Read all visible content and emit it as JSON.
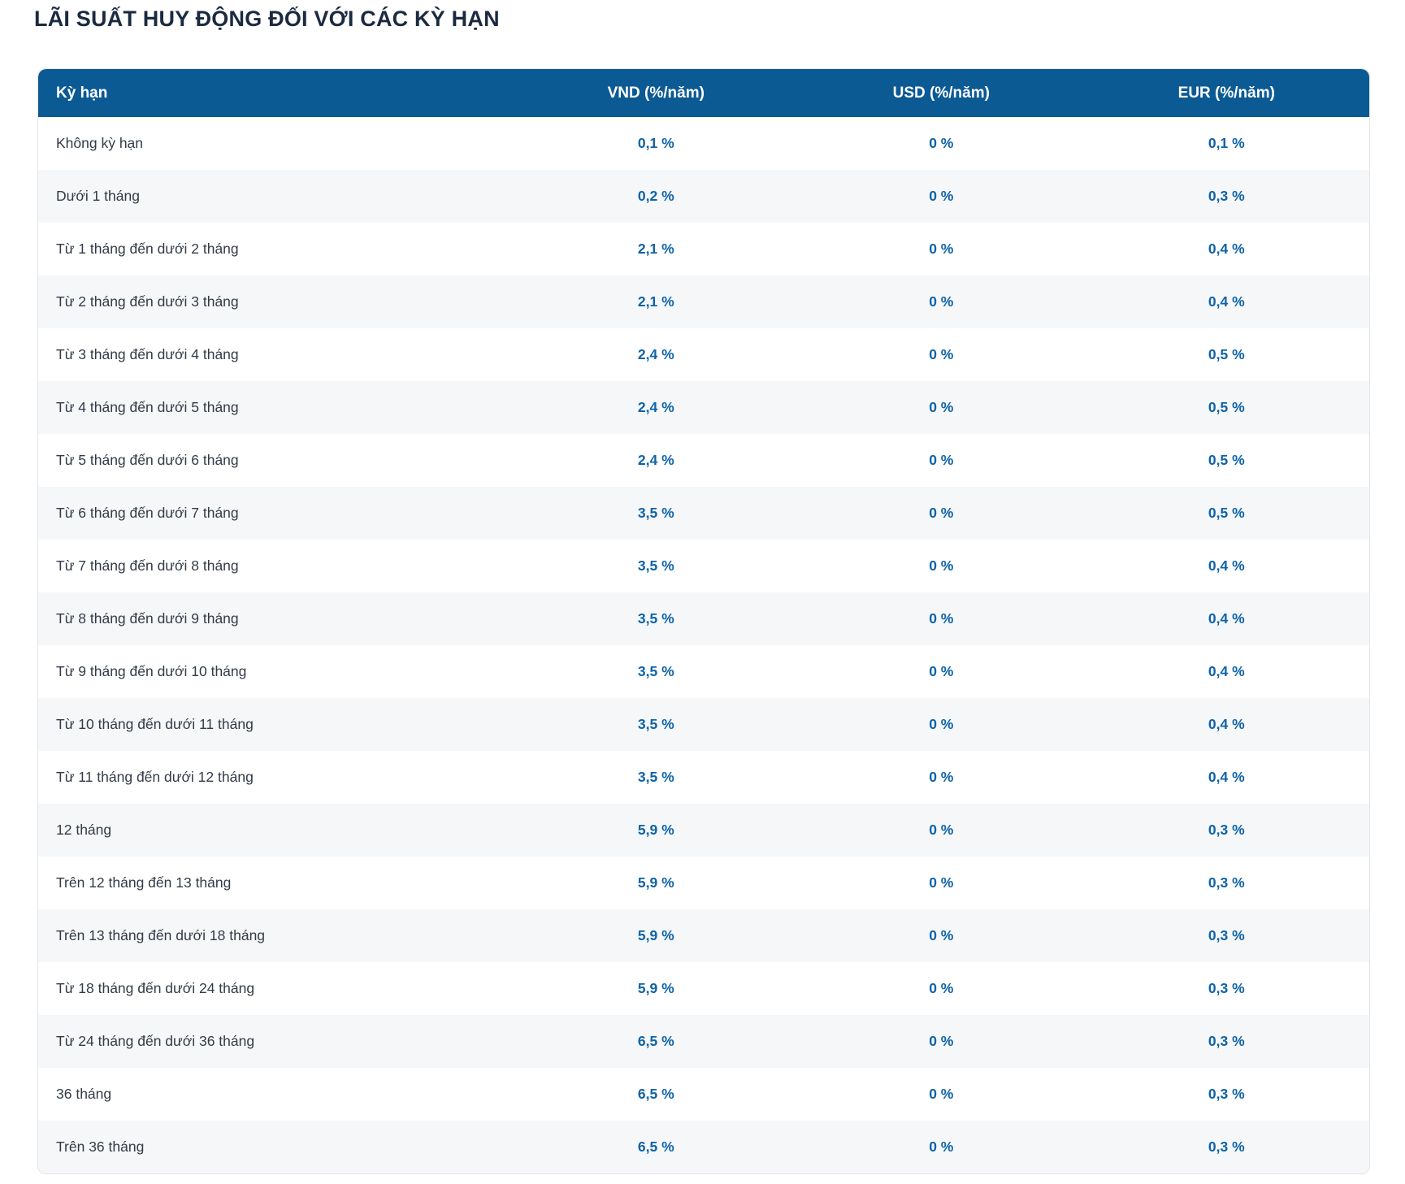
{
  "title": "LÃI SUẤT HUY ĐỘNG ĐỐI VỚI CÁC KỲ HẠN",
  "colors": {
    "header_background": "#0b5a94",
    "header_text": "#ffffff",
    "title_text": "#1b2a40",
    "term_text": "#333b47",
    "value_text": "#0e63a8",
    "row_alternate": "#f5f7f9",
    "row_default": "#ffffff",
    "table_border": "#e2e5ea"
  },
  "table": {
    "columns": [
      "Kỳ hạn",
      "VND (%/năm)",
      "USD (%/năm)",
      "EUR (%/năm)"
    ],
    "rows": [
      {
        "term": "Không kỳ hạn",
        "vnd": "0,1 %",
        "usd": "0 %",
        "eur": "0,1 %"
      },
      {
        "term": "Dưới 1 tháng",
        "vnd": "0,2 %",
        "usd": "0 %",
        "eur": "0,3 %"
      },
      {
        "term": "Từ 1 tháng đến dưới 2 tháng",
        "vnd": "2,1 %",
        "usd": "0 %",
        "eur": "0,4 %"
      },
      {
        "term": "Từ 2 tháng đến dưới 3 tháng",
        "vnd": "2,1 %",
        "usd": "0 %",
        "eur": "0,4 %"
      },
      {
        "term": "Từ 3 tháng đến dưới 4 tháng",
        "vnd": "2,4 %",
        "usd": "0 %",
        "eur": "0,5 %"
      },
      {
        "term": "Từ 4 tháng đến dưới 5 tháng",
        "vnd": "2,4 %",
        "usd": "0 %",
        "eur": "0,5 %"
      },
      {
        "term": "Từ 5 tháng đến dưới 6 tháng",
        "vnd": "2,4 %",
        "usd": "0 %",
        "eur": "0,5 %"
      },
      {
        "term": "Từ 6 tháng đến dưới 7 tháng",
        "vnd": "3,5 %",
        "usd": "0 %",
        "eur": "0,5 %"
      },
      {
        "term": "Từ 7 tháng đến dưới 8 tháng",
        "vnd": "3,5 %",
        "usd": "0 %",
        "eur": "0,4 %"
      },
      {
        "term": "Từ 8 tháng đến dưới 9 tháng",
        "vnd": "3,5 %",
        "usd": "0 %",
        "eur": "0,4 %"
      },
      {
        "term": "Từ 9 tháng đến dưới 10 tháng",
        "vnd": "3,5 %",
        "usd": "0 %",
        "eur": "0,4 %"
      },
      {
        "term": "Từ 10 tháng đến dưới 11 tháng",
        "vnd": "3,5 %",
        "usd": "0 %",
        "eur": "0,4 %"
      },
      {
        "term": "Từ 11 tháng đến dưới 12 tháng",
        "vnd": "3,5 %",
        "usd": "0 %",
        "eur": "0,4 %"
      },
      {
        "term": "12 tháng",
        "vnd": "5,9 %",
        "usd": "0 %",
        "eur": "0,3 %"
      },
      {
        "term": "Trên 12 tháng đến 13 tháng",
        "vnd": "5,9 %",
        "usd": "0 %",
        "eur": "0,3 %"
      },
      {
        "term": "Trên 13 tháng đến dưới 18 tháng",
        "vnd": "5,9 %",
        "usd": "0 %",
        "eur": "0,3 %"
      },
      {
        "term": "Từ 18 tháng đến dưới 24 tháng",
        "vnd": "5,9 %",
        "usd": "0 %",
        "eur": "0,3 %"
      },
      {
        "term": "Từ 24 tháng đến dưới 36 tháng",
        "vnd": "6,5 %",
        "usd": "0 %",
        "eur": "0,3 %"
      },
      {
        "term": "36 tháng",
        "vnd": "6,5 %",
        "usd": "0 %",
        "eur": "0,3 %"
      },
      {
        "term": "Trên 36 tháng",
        "vnd": "6,5 %",
        "usd": "0 %",
        "eur": "0,3 %"
      }
    ]
  }
}
